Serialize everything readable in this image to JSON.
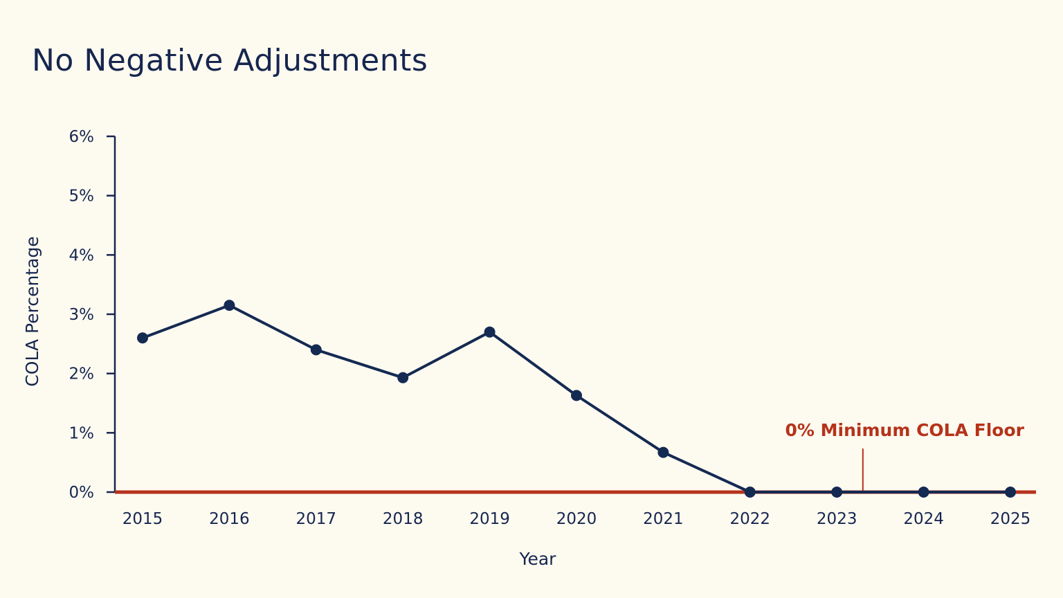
{
  "title": "No Negative Adjustments",
  "chart_data": {
    "type": "line",
    "title": "No Negative Adjustments",
    "xlabel": "Year",
    "ylabel": "COLA Percentage",
    "x": [
      "2015",
      "2016",
      "2017",
      "2018",
      "2019",
      "2020",
      "2021",
      "2022",
      "2023",
      "2024",
      "2025"
    ],
    "series": [
      {
        "values": [
          2.6,
          3.15,
          2.4,
          1.93,
          2.7,
          1.63,
          0.67,
          0,
          0,
          0,
          0
        ],
        "color": "#142a52"
      }
    ],
    "ylim": [
      0,
      6
    ],
    "yticks": [
      0,
      1,
      2,
      3,
      4,
      5,
      6
    ],
    "ytick_labels": [
      "0%",
      "1%",
      "2%",
      "3%",
      "4%",
      "5%",
      "6%"
    ],
    "grid": false,
    "reference_line": {
      "y": 0,
      "label": "0% Minimum COLA Floor",
      "color": "#b5331a"
    },
    "colors": {
      "background": "#fdfaf0",
      "axis": "#16264f",
      "text": "#16264f"
    }
  }
}
